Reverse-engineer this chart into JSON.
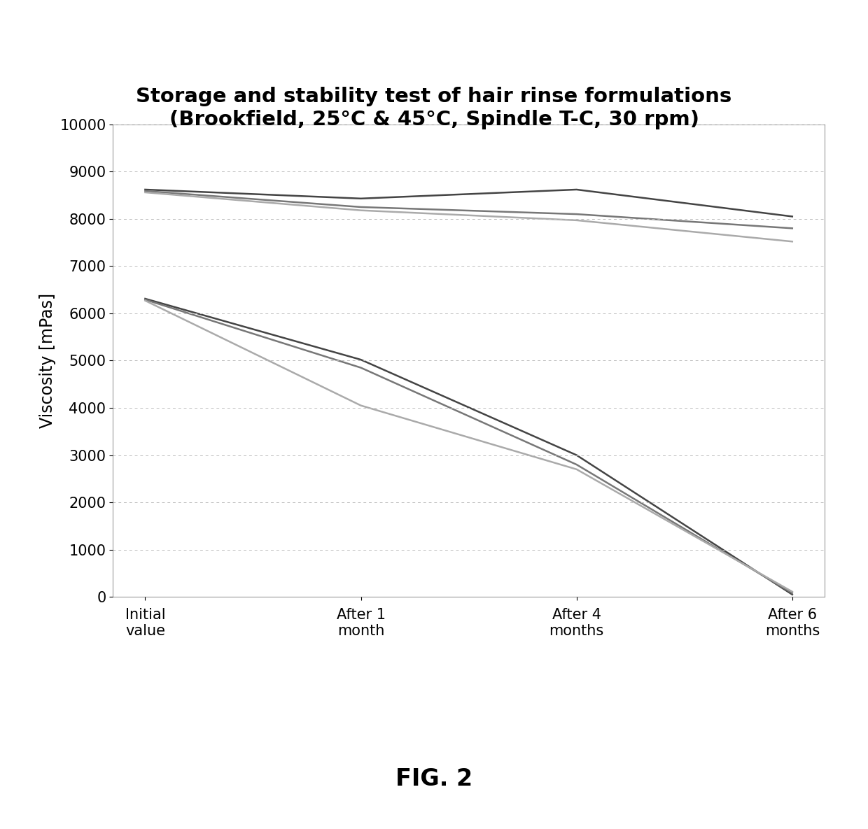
{
  "title_line1": "Storage and stability test of hair rinse formulations",
  "title_line2": "(Brookfield, 25°C & 45°C, Spindle T-C, 30 rpm)",
  "xlabel_labels": [
    "Initial\nvalue",
    "After 1\nmonth",
    "After 4\nmonths",
    "After 6\nmonths"
  ],
  "ylabel": "Viscosity [mPas]",
  "ylim": [
    0,
    10000
  ],
  "yticks": [
    0,
    1000,
    2000,
    3000,
    4000,
    5000,
    6000,
    7000,
    8000,
    9000,
    10000
  ],
  "x_positions": [
    0,
    1,
    2,
    3
  ],
  "series": [
    {
      "values": [
        8620,
        8430,
        8620,
        8050
      ],
      "color": "#444444",
      "lw": 1.8
    },
    {
      "values": [
        8590,
        8250,
        8100,
        7800
      ],
      "color": "#777777",
      "lw": 1.8
    },
    {
      "values": [
        8560,
        8180,
        7970,
        7520
      ],
      "color": "#aaaaaa",
      "lw": 1.8
    },
    {
      "values": [
        6310,
        5020,
        3000,
        50
      ],
      "color": "#444444",
      "lw": 1.8
    },
    {
      "values": [
        6290,
        4850,
        2800,
        80
      ],
      "color": "#777777",
      "lw": 1.8
    },
    {
      "values": [
        6270,
        4050,
        2700,
        110
      ],
      "color": "#aaaaaa",
      "lw": 1.8
    }
  ],
  "fig_label": "FIG. 2",
  "background_color": "#ffffff",
  "grid_color": "#bbbbbb",
  "title_fontsize": 21,
  "label_fontsize": 17,
  "tick_fontsize": 15,
  "fig_label_fontsize": 24
}
